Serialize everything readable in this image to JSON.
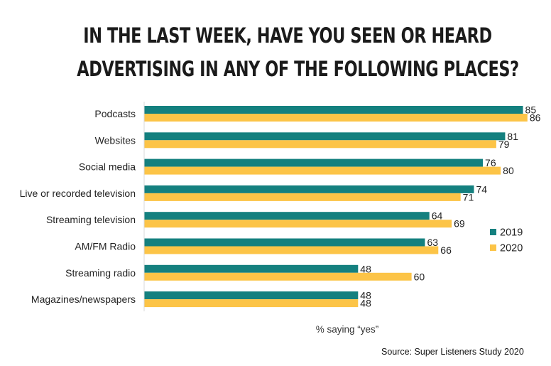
{
  "chart_data": {
    "type": "bar",
    "orientation": "horizontal",
    "title_lines": [
      "IN THE LAST WEEK, HAVE YOU SEEN OR HEARD",
      "ADVERTISING IN ANY OF THE FOLLOWING PLACES?"
    ],
    "categories": [
      "Podcasts",
      "Websites",
      "Social media",
      "Live or recorded television",
      "Streaming television",
      "AM/FM Radio",
      "Streaming radio",
      "Magazines/newspapers"
    ],
    "series": [
      {
        "name": "2019",
        "color": "#14807f",
        "values": [
          85,
          81,
          76,
          74,
          64,
          63,
          48,
          48
        ]
      },
      {
        "name": "2020",
        "color": "#fcc447",
        "values": [
          86,
          79,
          80,
          71,
          69,
          66,
          60,
          48
        ]
      }
    ],
    "xlabel": "% saying “yes”",
    "xlim": [
      0,
      100
    ],
    "grid": false,
    "legend_position": "right",
    "source": "Source: Super Listeners Study 2020"
  }
}
